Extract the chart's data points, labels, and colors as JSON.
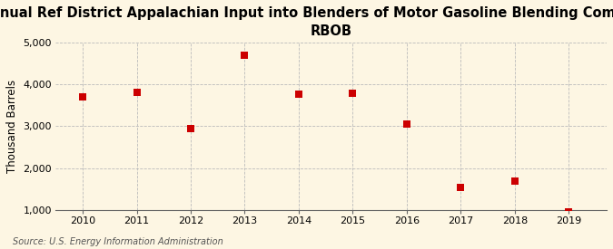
{
  "title": "Annual Ref District Appalachian Input into Blenders of Motor Gasoline Blending Components,\nRBOB",
  "ylabel": "Thousand Barrels",
  "source": "Source: U.S. Energy Information Administration",
  "years": [
    2010,
    2011,
    2012,
    2013,
    2014,
    2015,
    2016,
    2017,
    2018,
    2019
  ],
  "values": [
    3700,
    3810,
    2950,
    4700,
    3760,
    3790,
    3050,
    1530,
    1700,
    950
  ],
  "marker_color": "#cc0000",
  "marker": "s",
  "marker_size": 6,
  "bg_color": "#fdf6e3",
  "plot_bg_color": "#fdf6e3",
  "grid_color": "#bbbbbb",
  "spine_color": "#666666",
  "ylim": [
    1000,
    5000
  ],
  "yticks": [
    1000,
    2000,
    3000,
    4000,
    5000
  ],
  "xlim": [
    2009.5,
    2019.7
  ],
  "title_fontsize": 10.5,
  "label_fontsize": 8.5,
  "tick_fontsize": 8,
  "source_fontsize": 7
}
